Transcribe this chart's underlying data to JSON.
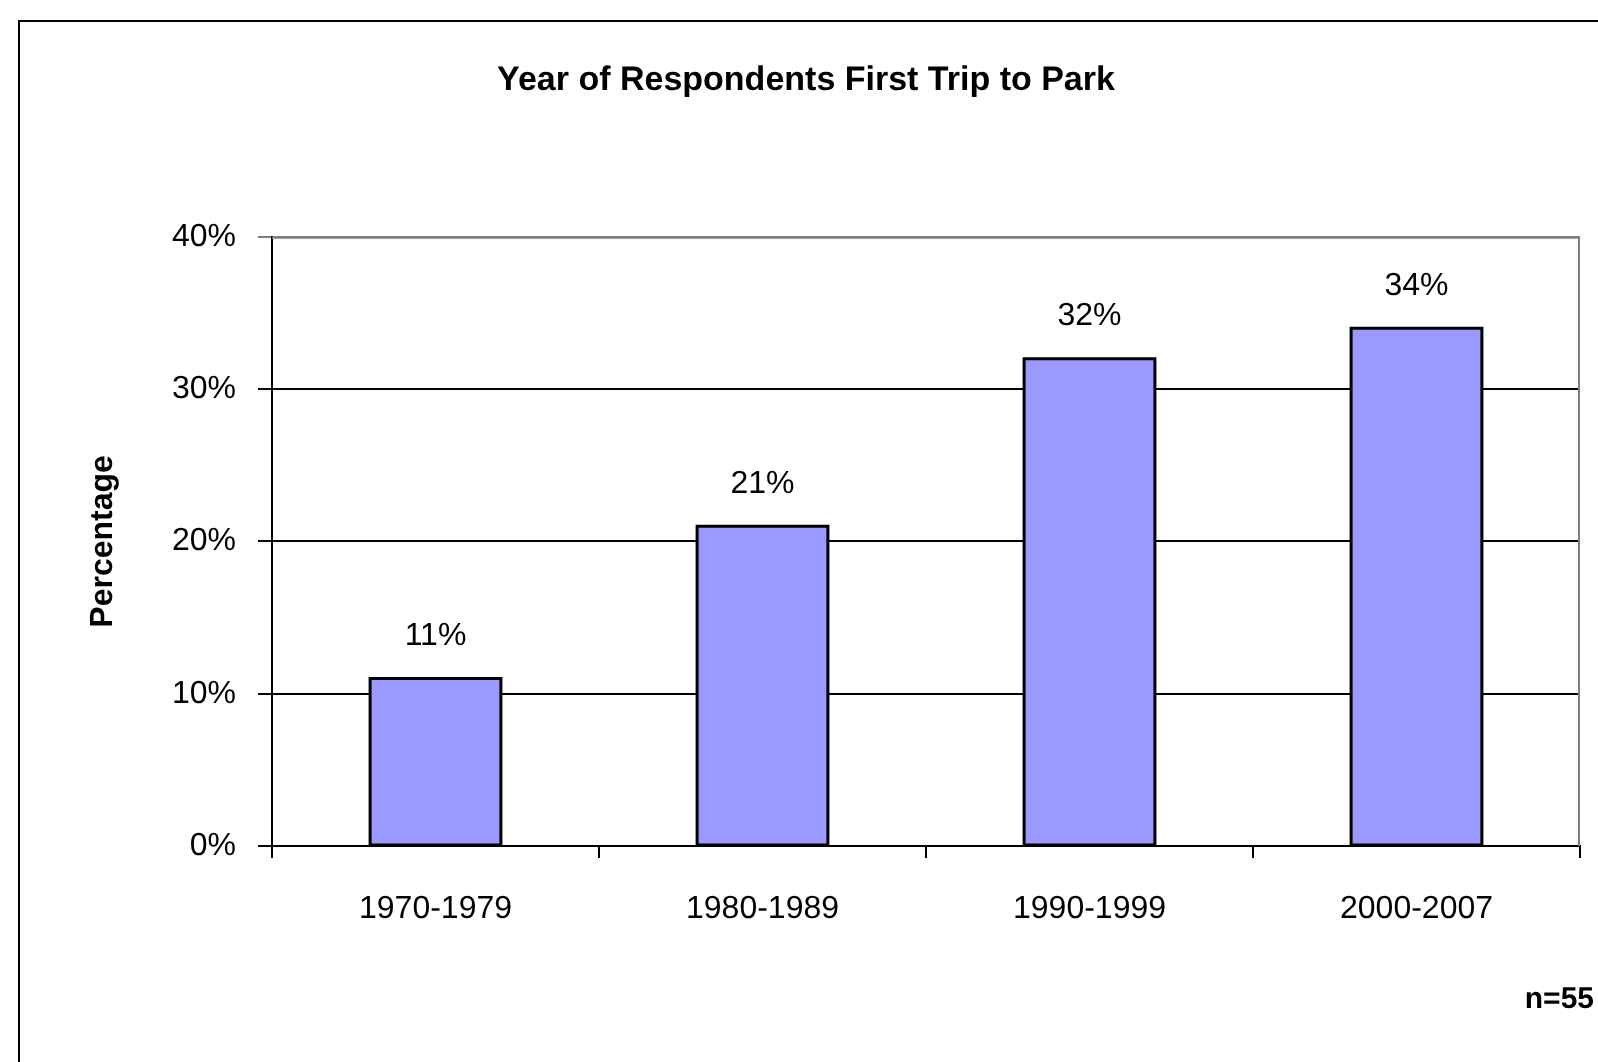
{
  "chart_data": {
    "type": "bar",
    "title": "Year of Respondents First Trip to Park",
    "ylabel": "Percentage",
    "categories": [
      "1970-1979",
      "1980-1989",
      "1990-1999",
      "2000-2007"
    ],
    "values": [
      11,
      21,
      32,
      34
    ],
    "value_labels": [
      "11%",
      "21%",
      "32%",
      "34%"
    ],
    "color": "#9999ff",
    "ylim": [
      0,
      40
    ],
    "yticks": [
      {
        "value": 0,
        "label": "0%"
      },
      {
        "value": 10,
        "label": "10%"
      },
      {
        "value": 20,
        "label": "20%"
      },
      {
        "value": 30,
        "label": "30%"
      },
      {
        "value": 40,
        "label": "40%"
      }
    ],
    "grid": "y",
    "annotations": [
      "n=55"
    ]
  }
}
